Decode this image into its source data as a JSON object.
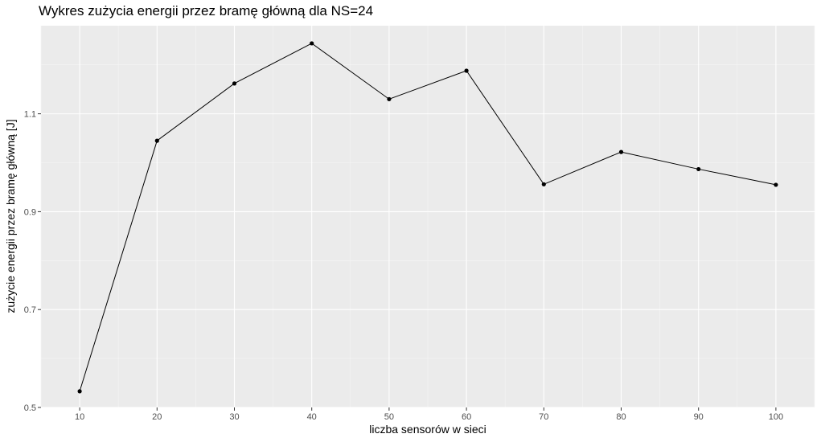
{
  "chart_data": {
    "type": "line",
    "title": "Wykres zużycia energii przez bramę główną dla NS=24",
    "xlabel": "liczba sensorów w sieci",
    "ylabel": "zużycie energii przez bramę główną [J]",
    "x": [
      10,
      20,
      30,
      40,
      50,
      60,
      70,
      80,
      90,
      100
    ],
    "series": [
      {
        "values": [
          0.533,
          1.045,
          1.162,
          1.244,
          1.13,
          1.188,
          0.956,
          1.022,
          0.987,
          0.955
        ]
      }
    ],
    "xlim": [
      5,
      105
    ],
    "ylim": [
      0.5,
      1.28
    ],
    "x_ticks": [
      10,
      20,
      30,
      40,
      50,
      60,
      70,
      80,
      90,
      100
    ],
    "x_tick_labels": [
      "10",
      "20",
      "30",
      "40",
      "50",
      "60",
      "70",
      "80",
      "90",
      "100"
    ],
    "y_ticks": [
      0.5,
      0.7,
      0.9,
      1.1
    ],
    "y_tick_labels": [
      "0.5",
      "0.7",
      "0.9",
      "1.1"
    ],
    "grid": true,
    "legend": "none",
    "colors": {
      "panel_background": "#ebebeb",
      "grid_major": "#ffffff",
      "grid_minor": "#f5f5f5",
      "line": "#000000",
      "point": "#000000",
      "tick_text": "#4d4d4d",
      "tick_mark": "#333333"
    }
  }
}
